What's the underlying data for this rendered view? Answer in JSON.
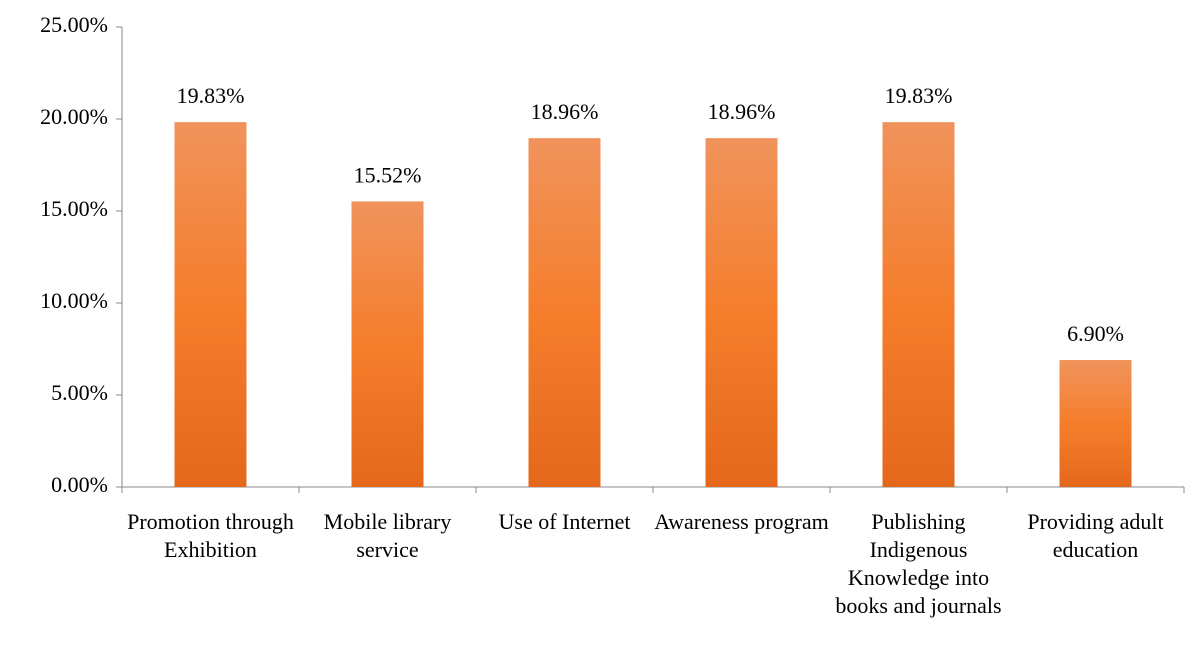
{
  "chart_data": {
    "type": "bar",
    "categories": [
      "Promotion through Exhibition",
      "Mobile library service",
      "Use of Internet",
      "Awareness program",
      "Publishing Indigenous Knowledge into books and journals",
      "Providing adult education"
    ],
    "values": [
      19.83,
      15.52,
      18.96,
      18.96,
      19.83,
      6.9
    ],
    "value_labels": [
      "19.83%",
      "15.52%",
      "18.96%",
      "18.96%",
      "19.83%",
      "6.90%"
    ],
    "color": "#f07a2e",
    "ylim": [
      0,
      25
    ],
    "yticks": [
      {
        "value": 0,
        "label": "0.00%"
      },
      {
        "value": 5,
        "label": "5.00%"
      },
      {
        "value": 10,
        "label": "10.00%"
      },
      {
        "value": 15,
        "label": "15.00%"
      },
      {
        "value": 20,
        "label": "20.00%"
      },
      {
        "value": 25,
        "label": "25.00%"
      }
    ],
    "grid": false
  }
}
